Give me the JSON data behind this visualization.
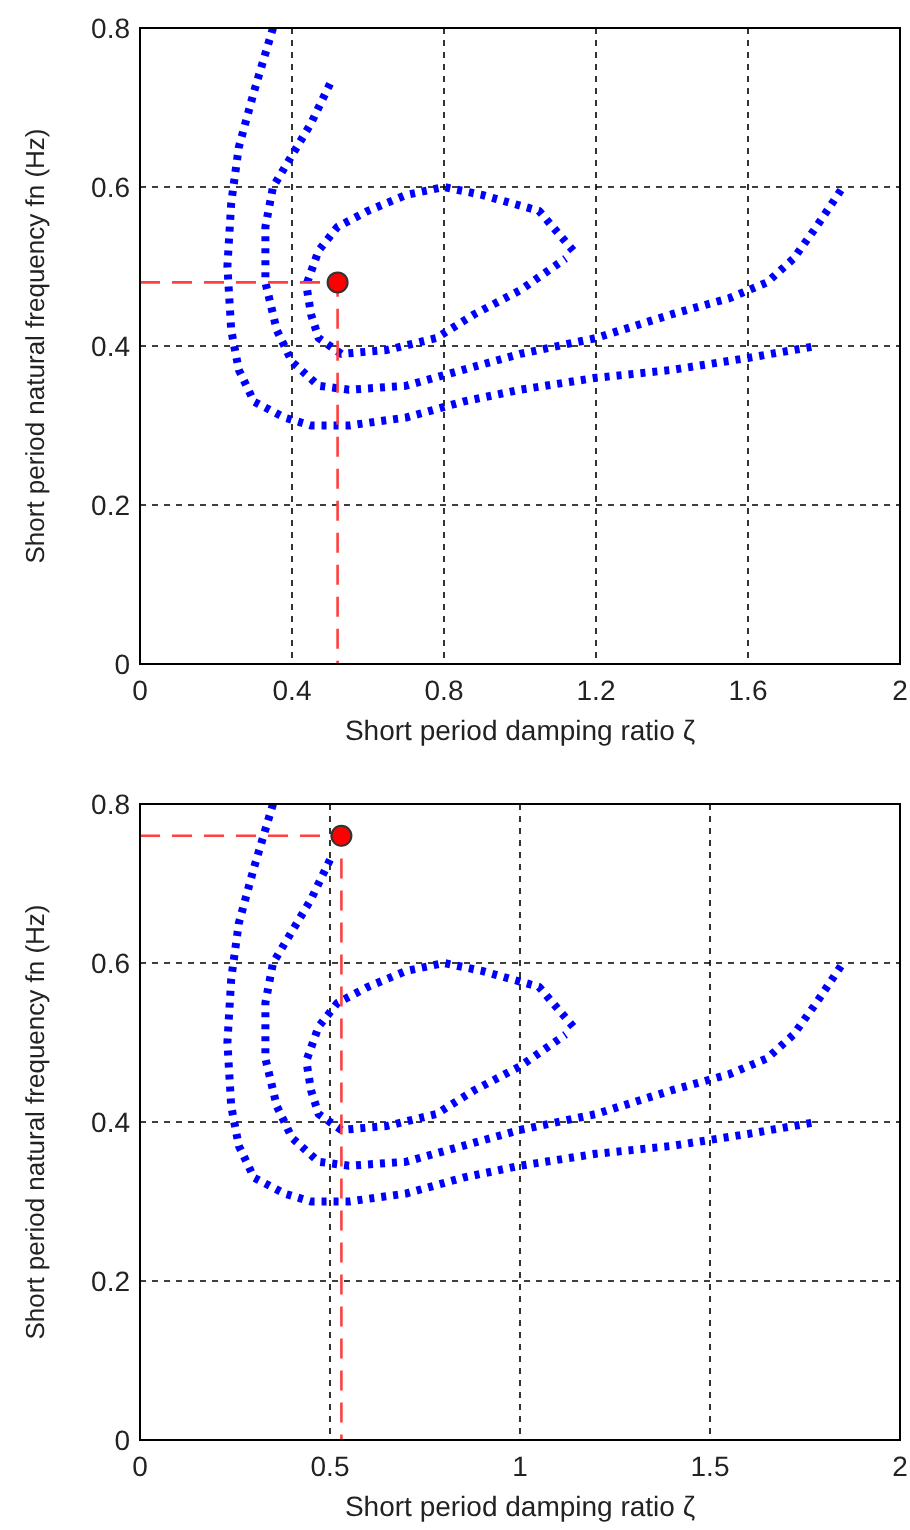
{
  "chart_data": [
    {
      "type": "line",
      "xlabel": "Short period damping ratio ζ",
      "ylabel": "Short period natural frequency fn (Hz)",
      "xlim": [
        0,
        2
      ],
      "xticks": [
        0,
        0.4,
        0.8,
        1.2,
        1.6,
        2
      ],
      "ylim": [
        0,
        0.8
      ],
      "yticks": [
        0,
        0.2,
        0.4,
        0.6,
        0.8
      ],
      "grid": true,
      "series": [
        {
          "color": "#0000ff",
          "line_style": "dotted",
          "marker": "none",
          "x": [
            0.35,
            0.3,
            0.26,
            0.24,
            0.23,
            0.24,
            0.26,
            0.3,
            0.38,
            0.45,
            0.55,
            0.7,
            0.85,
            1.0,
            1.2,
            1.4,
            1.6,
            1.78
          ],
          "values": [
            0.8,
            0.72,
            0.65,
            0.58,
            0.5,
            0.42,
            0.37,
            0.33,
            0.31,
            0.3,
            0.3,
            0.31,
            0.33,
            0.345,
            0.36,
            0.37,
            0.385,
            0.4
          ]
        },
        {
          "color": "#0000ff",
          "line_style": "dotted",
          "marker": "none",
          "x": [
            0.5,
            0.45,
            0.4,
            0.35,
            0.33,
            0.33,
            0.36,
            0.4,
            0.47,
            0.55,
            0.7,
            0.85,
            1.0,
            1.2,
            1.4,
            1.55,
            1.65,
            1.72,
            1.78,
            1.85
          ],
          "values": [
            0.73,
            0.68,
            0.64,
            0.6,
            0.55,
            0.48,
            0.42,
            0.38,
            0.35,
            0.345,
            0.35,
            0.37,
            0.39,
            0.41,
            0.44,
            0.46,
            0.48,
            0.51,
            0.55,
            0.6
          ]
        },
        {
          "color": "#0000ff",
          "line_style": "dotted",
          "marker": "none",
          "x": [
            0.44,
            0.47,
            0.52,
            0.6,
            0.7,
            0.8,
            0.9,
            1.05,
            1.14
          ],
          "values": [
            0.48,
            0.52,
            0.55,
            0.57,
            0.59,
            0.6,
            0.59,
            0.57,
            0.52
          ]
        },
        {
          "color": "#0000ff",
          "line_style": "dotted",
          "marker": "none",
          "x": [
            0.44,
            0.45,
            0.47,
            0.53,
            0.65,
            0.78,
            0.88,
            1.0,
            1.12
          ],
          "values": [
            0.47,
            0.44,
            0.41,
            0.39,
            0.395,
            0.41,
            0.44,
            0.47,
            0.51
          ]
        },
        {
          "color": "#ff4040",
          "line_style": "dashed",
          "marker": "none",
          "x": [
            0,
            0.52,
            0.52
          ],
          "values": [
            0.48,
            0.48,
            0
          ]
        },
        {
          "type": "scatter",
          "color": "#ff0000",
          "marker": "circle",
          "x": [
            0.52
          ],
          "values": [
            0.48
          ]
        }
      ]
    },
    {
      "type": "line",
      "xlabel": "Short period damping ratio ζ",
      "ylabel": "Short period natural frequency fn (Hz)",
      "xlim": [
        0,
        2
      ],
      "xticks": [
        0,
        0.5,
        1,
        1.5,
        2
      ],
      "ylim": [
        0,
        0.8
      ],
      "yticks": [
        0,
        0.2,
        0.4,
        0.6,
        0.8
      ],
      "grid": true,
      "series": [
        {
          "color": "#0000ff",
          "line_style": "dotted",
          "marker": "none",
          "x": [
            0.35,
            0.3,
            0.26,
            0.24,
            0.23,
            0.24,
            0.26,
            0.3,
            0.38,
            0.45,
            0.55,
            0.7,
            0.85,
            1.0,
            1.2,
            1.4,
            1.6,
            1.78
          ],
          "values": [
            0.8,
            0.72,
            0.65,
            0.58,
            0.5,
            0.42,
            0.37,
            0.33,
            0.31,
            0.3,
            0.3,
            0.31,
            0.33,
            0.345,
            0.36,
            0.37,
            0.385,
            0.4
          ]
        },
        {
          "color": "#0000ff",
          "line_style": "dotted",
          "marker": "none",
          "x": [
            0.5,
            0.45,
            0.4,
            0.35,
            0.33,
            0.33,
            0.36,
            0.4,
            0.47,
            0.55,
            0.7,
            0.85,
            1.0,
            1.2,
            1.4,
            1.55,
            1.65,
            1.72,
            1.78,
            1.85
          ],
          "values": [
            0.73,
            0.68,
            0.64,
            0.6,
            0.55,
            0.48,
            0.42,
            0.38,
            0.35,
            0.345,
            0.35,
            0.37,
            0.39,
            0.41,
            0.44,
            0.46,
            0.48,
            0.51,
            0.55,
            0.6
          ]
        },
        {
          "color": "#0000ff",
          "line_style": "dotted",
          "marker": "none",
          "x": [
            0.44,
            0.47,
            0.52,
            0.6,
            0.7,
            0.8,
            0.9,
            1.05,
            1.14
          ],
          "values": [
            0.48,
            0.52,
            0.55,
            0.57,
            0.59,
            0.6,
            0.59,
            0.57,
            0.52
          ]
        },
        {
          "color": "#0000ff",
          "line_style": "dotted",
          "marker": "none",
          "x": [
            0.44,
            0.45,
            0.47,
            0.53,
            0.65,
            0.78,
            0.88,
            1.0,
            1.12
          ],
          "values": [
            0.47,
            0.44,
            0.41,
            0.39,
            0.395,
            0.41,
            0.44,
            0.47,
            0.51
          ]
        },
        {
          "color": "#ff4040",
          "line_style": "dashed",
          "marker": "none",
          "x": [
            0,
            0.53,
            0.53
          ],
          "values": [
            0.76,
            0.76,
            0
          ]
        },
        {
          "type": "scatter",
          "color": "#ff0000",
          "marker": "circle",
          "x": [
            0.53
          ],
          "values": [
            0.76
          ]
        }
      ]
    }
  ]
}
